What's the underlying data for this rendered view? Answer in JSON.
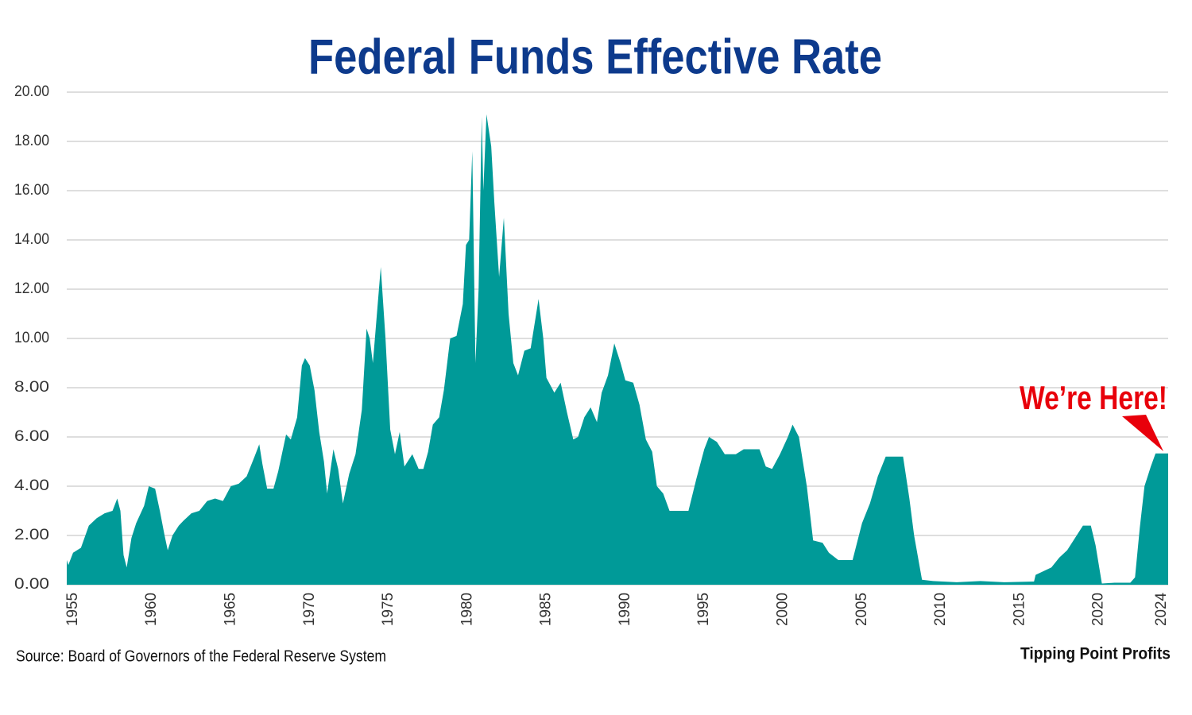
{
  "chart_data": {
    "type": "area",
    "title": "Federal Funds Effective Rate",
    "source": "Source: Board of Governors of the Federal Reserve System",
    "brand": "Tipping Point Profits",
    "annotation": "We’re Here!",
    "color": "#009a98",
    "annotation_color": "#e8000b",
    "title_color": "#0d3a8c",
    "grid": true,
    "xlim": [
      1954.6,
      2024.4
    ],
    "xticks": [
      1955,
      1960,
      1965,
      1970,
      1975,
      1980,
      1985,
      1990,
      1995,
      2000,
      2005,
      2010,
      2015,
      2020,
      2024
    ],
    "ylim": [
      0,
      20
    ],
    "yticks": [
      {
        "value": 0,
        "label": "0.00"
      },
      {
        "value": 2,
        "label": "2.00"
      },
      {
        "value": 4,
        "label": "4.00"
      },
      {
        "value": 6,
        "label": "6.00"
      },
      {
        "value": 8,
        "label": "8.00"
      },
      {
        "value": 10,
        "label": "10.00"
      },
      {
        "value": 12,
        "label": "12.00"
      },
      {
        "value": 14,
        "label": "14.00"
      },
      {
        "value": 16,
        "label": "16.00"
      },
      {
        "value": 18,
        "label": "18.00"
      },
      {
        "value": 20,
        "label": "20.00"
      }
    ],
    "x": [
      1954.6,
      1954.7,
      1955.0,
      1955.5,
      1956.0,
      1956.5,
      1957.0,
      1957.5,
      1957.8,
      1958.0,
      1958.2,
      1958.4,
      1958.7,
      1959.0,
      1959.5,
      1959.8,
      1960.2,
      1960.5,
      1960.8,
      1961.0,
      1961.3,
      1961.7,
      1962.0,
      1962.5,
      1963.0,
      1963.5,
      1964.0,
      1964.5,
      1965.0,
      1965.5,
      1966.0,
      1966.5,
      1966.8,
      1967.0,
      1967.3,
      1967.7,
      1968.0,
      1968.5,
      1968.8,
      1969.2,
      1969.5,
      1969.7,
      1970.0,
      1970.3,
      1970.6,
      1970.9,
      1971.1,
      1971.5,
      1971.8,
      1972.1,
      1972.5,
      1972.9,
      1973.3,
      1973.6,
      1973.8,
      1974.0,
      1974.5,
      1974.8,
      1975.1,
      1975.4,
      1975.7,
      1976.0,
      1976.5,
      1976.9,
      1977.2,
      1977.5,
      1977.8,
      1978.2,
      1978.5,
      1978.9,
      1979.3,
      1979.7,
      1979.9,
      1980.1,
      1980.3,
      1980.5,
      1980.7,
      1980.9,
      1981.0,
      1981.2,
      1981.5,
      1981.7,
      1982.0,
      1982.3,
      1982.6,
      1982.9,
      1983.2,
      1983.6,
      1984.0,
      1984.5,
      1984.8,
      1985.0,
      1985.5,
      1985.9,
      1986.3,
      1986.7,
      1987.0,
      1987.4,
      1987.8,
      1988.2,
      1988.5,
      1988.9,
      1989.3,
      1989.7,
      1990.0,
      1990.5,
      1990.9,
      1991.3,
      1991.7,
      1992.0,
      1992.4,
      1992.8,
      1993.5,
      1994.0,
      1994.5,
      1995.0,
      1995.3,
      1995.8,
      1996.3,
      1997.0,
      1997.5,
      1998.5,
      1998.9,
      1999.3,
      1999.8,
      2000.3,
      2000.6,
      2001.0,
      2001.5,
      2001.9,
      2002.5,
      2002.9,
      2003.5,
      2004.4,
      2005.0,
      2005.5,
      2006.0,
      2006.5,
      2007.6,
      2008.0,
      2008.3,
      2008.8,
      2009.5,
      2011.0,
      2012.5,
      2014.0,
      2015.9,
      2016.0,
      2017.0,
      2017.5,
      2018.0,
      2018.5,
      2019.0,
      2019.5,
      2019.8,
      2020.2,
      2021.0,
      2022.0,
      2022.3,
      2022.6,
      2022.9,
      2023.3,
      2023.6,
      2024.4
    ],
    "values": [
      1.0,
      0.8,
      1.3,
      1.5,
      2.4,
      2.7,
      2.9,
      3.0,
      3.5,
      3.0,
      1.2,
      0.7,
      1.9,
      2.5,
      3.2,
      4.0,
      3.9,
      3.0,
      2.0,
      1.4,
      2.0,
      2.4,
      2.6,
      2.9,
      3.0,
      3.4,
      3.5,
      3.4,
      4.0,
      4.1,
      4.4,
      5.2,
      5.7,
      4.9,
      3.9,
      3.9,
      4.6,
      6.1,
      5.9,
      6.8,
      8.9,
      9.2,
      8.9,
      7.9,
      6.2,
      5.0,
      3.7,
      5.5,
      4.7,
      3.3,
      4.5,
      5.3,
      7.1,
      10.4,
      10.0,
      9.0,
      12.9,
      10.0,
      6.3,
      5.3,
      6.2,
      4.8,
      5.3,
      4.7,
      4.7,
      5.4,
      6.5,
      6.8,
      7.9,
      10.0,
      10.1,
      11.4,
      13.8,
      14.0,
      17.6,
      9.0,
      12.0,
      19.0,
      16.0,
      19.1,
      17.8,
      15.5,
      12.5,
      14.9,
      11.0,
      9.0,
      8.5,
      9.5,
      9.6,
      11.6,
      10.0,
      8.4,
      7.8,
      8.2,
      7.0,
      5.9,
      6.0,
      6.8,
      7.2,
      6.6,
      7.8,
      8.5,
      9.8,
      9.0,
      8.3,
      8.2,
      7.3,
      5.9,
      5.4,
      4.0,
      3.7,
      3.0,
      3.0,
      3.0,
      4.3,
      5.5,
      6.0,
      5.8,
      5.3,
      5.3,
      5.5,
      5.5,
      4.8,
      4.7,
      5.3,
      6.0,
      6.5,
      6.0,
      4.0,
      1.8,
      1.7,
      1.3,
      1.0,
      1.0,
      2.5,
      3.3,
      4.4,
      5.2,
      5.2,
      3.5,
      2.0,
      0.2,
      0.15,
      0.1,
      0.15,
      0.1,
      0.13,
      0.4,
      0.7,
      1.1,
      1.4,
      1.9,
      2.4,
      2.4,
      1.6,
      0.05,
      0.08,
      0.08,
      0.3,
      2.3,
      4.0,
      4.8,
      5.33,
      5.33
    ]
  }
}
